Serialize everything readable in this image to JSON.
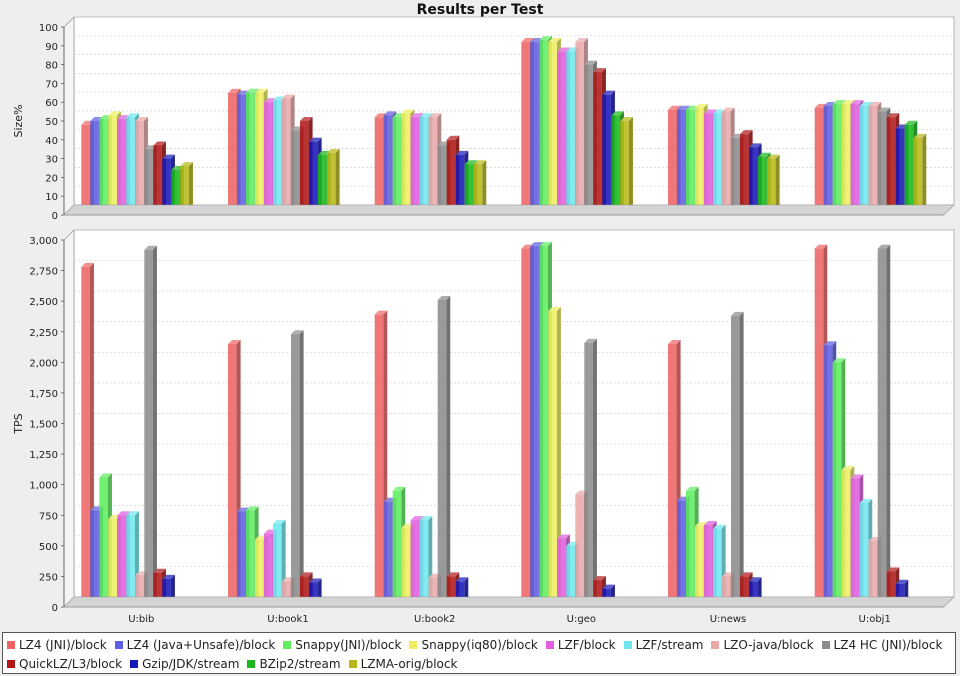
{
  "chart_data": {
    "type": "bar",
    "title": "Results per Test",
    "categories": [
      "U:bib",
      "U:book1",
      "U:book2",
      "U:geo",
      "U:news",
      "U:obj1"
    ],
    "series": [
      {
        "name": "LZ4 (JNI)/block",
        "color": "#ee6464",
        "size": [
          48,
          65,
          52,
          92,
          56,
          57
        ],
        "tps": [
          2780,
          2150,
          2390,
          2930,
          2150,
          2930
        ]
      },
      {
        "name": "LZ4 (Java+Unsafe)/block",
        "color": "#5e5ee0",
        "size": [
          50,
          64,
          53,
          92,
          56,
          58
        ],
        "tps": [
          790,
          780,
          860,
          2950,
          870,
          2140
        ]
      },
      {
        "name": "Snappy(JNI)/block",
        "color": "#5eee5e",
        "size": [
          51,
          65,
          52,
          93,
          56,
          59
        ],
        "tps": [
          1060,
          790,
          950,
          2950,
          950,
          2000
        ]
      },
      {
        "name": "Snappy(iq80)/block",
        "color": "#eeee5e",
        "size": [
          53,
          65,
          54,
          92,
          57,
          59
        ],
        "tps": [
          720,
          550,
          650,
          2420,
          660,
          1120
        ]
      },
      {
        "name": "LZF/block",
        "color": "#e05ee0",
        "size": [
          51,
          60,
          52,
          87,
          54,
          59
        ],
        "tps": [
          750,
          600,
          710,
          560,
          670,
          1050
        ]
      },
      {
        "name": "LZF/stream",
        "color": "#6ee8ee",
        "size": [
          52,
          61,
          52,
          87,
          54,
          58
        ],
        "tps": [
          750,
          680,
          710,
          500,
          640,
          850
        ]
      },
      {
        "name": "LZO-java/block",
        "color": "#e8a8a8",
        "size": [
          50,
          62,
          52,
          92,
          55,
          58
        ],
        "tps": [
          260,
          210,
          240,
          920,
          250,
          540
        ]
      },
      {
        "name": "LZ4 HC (JNI)/block",
        "color": "#8c8c8c",
        "size": [
          35,
          45,
          37,
          80,
          41,
          55
        ],
        "tps": [
          2920,
          2230,
          2510,
          2160,
          2380,
          2930
        ]
      },
      {
        "name": "QuickLZ/L3/block",
        "color": "#b01818",
        "size": [
          37,
          50,
          40,
          76,
          43,
          52
        ],
        "tps": [
          280,
          250,
          250,
          220,
          250,
          290
        ]
      },
      {
        "name": "Gzip/JDK/stream",
        "color": "#1818b8",
        "size": [
          30,
          39,
          32,
          64,
          36,
          46
        ],
        "tps": [
          230,
          200,
          210,
          150,
          210,
          190
        ]
      },
      {
        "name": "BZip2/stream",
        "color": "#18b818",
        "size": [
          24,
          32,
          27,
          53,
          31,
          48
        ],
        "tps": [
          30,
          30,
          30,
          30,
          30,
          30
        ]
      },
      {
        "name": "LZMA-orig/block",
        "color": "#b8b818",
        "size": [
          26,
          33,
          27,
          50,
          30,
          41
        ],
        "tps": [
          40,
          40,
          40,
          40,
          40,
          40
        ]
      }
    ],
    "subplots": [
      {
        "key": "size",
        "ylabel": "Size%",
        "ylim": [
          0,
          100
        ],
        "ticks": [
          0,
          10,
          20,
          30,
          40,
          50,
          60,
          70,
          80,
          90,
          100
        ]
      },
      {
        "key": "tps",
        "ylabel": "TPS",
        "ylim": [
          0,
          3000
        ],
        "ticks": [
          0,
          250,
          500,
          750,
          1000,
          1250,
          1500,
          1750,
          2000,
          2250,
          2500,
          2750,
          3000
        ],
        "tick_labels": [
          "0",
          "250",
          "500",
          "750",
          "1,000",
          "1,250",
          "1,500",
          "1,750",
          "2,000",
          "2,250",
          "2,500",
          "2,750",
          "3,000"
        ]
      }
    ],
    "legend_position": "bottom"
  }
}
